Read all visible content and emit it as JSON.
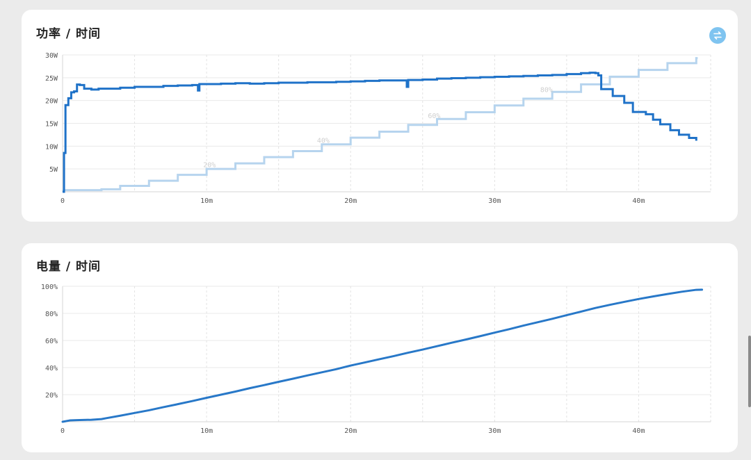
{
  "colors": {
    "power": "#1f72c8",
    "battery_power_chart": "#b6d4ee",
    "battery": "#2878c8",
    "swap_button": "#7fc4f0"
  },
  "icons": {
    "swap": "swap-arrows-icon"
  },
  "chart_data": [
    {
      "type": "line",
      "title": "功率 / 时间",
      "x_unit": "min",
      "xlim": [
        0,
        45
      ],
      "x_ticks": [
        0,
        10,
        20,
        30,
        40
      ],
      "x_tick_labels": [
        "0",
        "10m",
        "20m",
        "30m",
        "40m"
      ],
      "ylim": [
        0,
        30
      ],
      "y_ticks": [
        5,
        10,
        15,
        20,
        25,
        30
      ],
      "y_tick_labels": [
        "5W",
        "10W",
        "15W",
        "20W",
        "25W",
        "30W"
      ],
      "grid": true,
      "series": [
        {
          "role": "power",
          "style": "step",
          "points": [
            [
              0,
              0
            ],
            [
              0.1,
              8.5
            ],
            [
              0.2,
              19
            ],
            [
              0.4,
              20.5
            ],
            [
              0.6,
              21.8
            ],
            [
              0.8,
              22
            ],
            [
              1.0,
              23.5
            ],
            [
              1.2,
              23.4
            ],
            [
              1.5,
              22.6
            ],
            [
              2.0,
              22.4
            ],
            [
              2.5,
              22.6
            ],
            [
              3,
              22.6
            ],
            [
              4,
              22.8
            ],
            [
              5,
              23.0
            ],
            [
              6,
              23.0
            ],
            [
              7,
              23.2
            ],
            [
              8,
              23.3
            ],
            [
              9,
              23.4
            ],
            [
              9.4,
              22.2
            ],
            [
              9.5,
              23.6
            ],
            [
              10,
              23.6
            ],
            [
              11,
              23.7
            ],
            [
              12,
              23.8
            ],
            [
              13,
              23.7
            ],
            [
              14,
              23.8
            ],
            [
              15,
              23.9
            ],
            [
              16,
              23.9
            ],
            [
              17,
              24.0
            ],
            [
              18,
              24.0
            ],
            [
              19,
              24.1
            ],
            [
              20,
              24.2
            ],
            [
              21,
              24.3
            ],
            [
              22,
              24.4
            ],
            [
              23,
              24.4
            ],
            [
              23.9,
              23.0
            ],
            [
              24.0,
              24.5
            ],
            [
              25,
              24.6
            ],
            [
              26,
              24.8
            ],
            [
              27,
              24.9
            ],
            [
              28,
              25.0
            ],
            [
              29,
              25.1
            ],
            [
              30,
              25.2
            ],
            [
              31,
              25.3
            ],
            [
              32,
              25.4
            ],
            [
              33,
              25.5
            ],
            [
              34,
              25.6
            ],
            [
              35,
              25.8
            ],
            [
              36,
              26.0
            ],
            [
              36.6,
              26.1
            ],
            [
              37.0,
              26.0
            ],
            [
              37.2,
              25.5
            ],
            [
              37.4,
              22.5
            ],
            [
              38,
              22.5
            ],
            [
              38.2,
              21.0
            ],
            [
              39.0,
              19.5
            ],
            [
              39.6,
              17.5
            ],
            [
              40.5,
              17.0
            ],
            [
              41,
              15.8
            ],
            [
              41.5,
              14.8
            ],
            [
              42.2,
              13.5
            ],
            [
              42.8,
              12.5
            ],
            [
              43.5,
              11.8
            ],
            [
              44.0,
              11.2
            ]
          ]
        },
        {
          "role": "battery_overlay",
          "style": "step",
          "label_series": [
            "20%",
            "40%",
            "60%",
            "80%"
          ],
          "label_positions_x": [
            10.2,
            18.1,
            25.8,
            33.6
          ],
          "points_pct": [
            [
              0,
              1
            ],
            [
              2.7,
              1.5
            ],
            [
              4,
              3.5
            ],
            [
              6,
              6.5
            ],
            [
              8,
              10
            ],
            [
              10,
              13.5
            ],
            [
              12,
              16.8
            ],
            [
              14,
              20.5
            ],
            [
              16,
              24
            ],
            [
              18,
              28
            ],
            [
              20,
              32
            ],
            [
              22,
              35.5
            ],
            [
              24,
              39.5
            ],
            [
              26,
              43
            ],
            [
              28,
              47
            ],
            [
              30,
              51
            ],
            [
              32,
              55
            ],
            [
              34,
              59
            ],
            [
              36,
              63.5
            ],
            [
              38,
              68
            ],
            [
              40,
              72
            ],
            [
              42,
              76
            ],
            [
              44,
              79
            ],
            [
              44.1,
              79
            ]
          ]
        }
      ]
    },
    {
      "type": "line",
      "title": "电量 / 时间",
      "x_unit": "min",
      "xlim": [
        0,
        45
      ],
      "x_ticks": [
        0,
        10,
        20,
        30,
        40
      ],
      "x_tick_labels": [
        "0",
        "10m",
        "20m",
        "30m",
        "40m"
      ],
      "ylim": [
        0,
        100
      ],
      "y_ticks": [
        20,
        40,
        60,
        80,
        100
      ],
      "y_tick_labels": [
        "20%",
        "40%",
        "60%",
        "80%",
        "100%"
      ],
      "grid": true,
      "series": [
        {
          "role": "battery",
          "points": [
            [
              0,
              0
            ],
            [
              0.5,
              1
            ],
            [
              1,
              1.2
            ],
            [
              2,
              1.5
            ],
            [
              2.7,
              2
            ],
            [
              3,
              2.6
            ],
            [
              4,
              4.5
            ],
            [
              5,
              6.5
            ],
            [
              6,
              8.5
            ],
            [
              7,
              10.8
            ],
            [
              8,
              13
            ],
            [
              9,
              15.3
            ],
            [
              10,
              17.7
            ],
            [
              11,
              20
            ],
            [
              12,
              22.3
            ],
            [
              13,
              24.8
            ],
            [
              14,
              27.1
            ],
            [
              15,
              29.5
            ],
            [
              16,
              31.8
            ],
            [
              17,
              34.2
            ],
            [
              18,
              36.5
            ],
            [
              19,
              38.8
            ],
            [
              20,
              41.5
            ],
            [
              21,
              43.8
            ],
            [
              22,
              46.2
            ],
            [
              23,
              48.5
            ],
            [
              24,
              51
            ],
            [
              25,
              53.3
            ],
            [
              26,
              55.8
            ],
            [
              27,
              58.3
            ],
            [
              28,
              60.7
            ],
            [
              29,
              63.2
            ],
            [
              30,
              65.8
            ],
            [
              31,
              68.3
            ],
            [
              32,
              71
            ],
            [
              33,
              73.5
            ],
            [
              34,
              76
            ],
            [
              35,
              78.7
            ],
            [
              36,
              81.3
            ],
            [
              37,
              84
            ],
            [
              38,
              86.3
            ],
            [
              39,
              88.5
            ],
            [
              40,
              90.6
            ],
            [
              41,
              92.5
            ],
            [
              42,
              94.3
            ],
            [
              43,
              96
            ],
            [
              44,
              97.4
            ],
            [
              44.4,
              97.5
            ]
          ]
        }
      ]
    }
  ]
}
